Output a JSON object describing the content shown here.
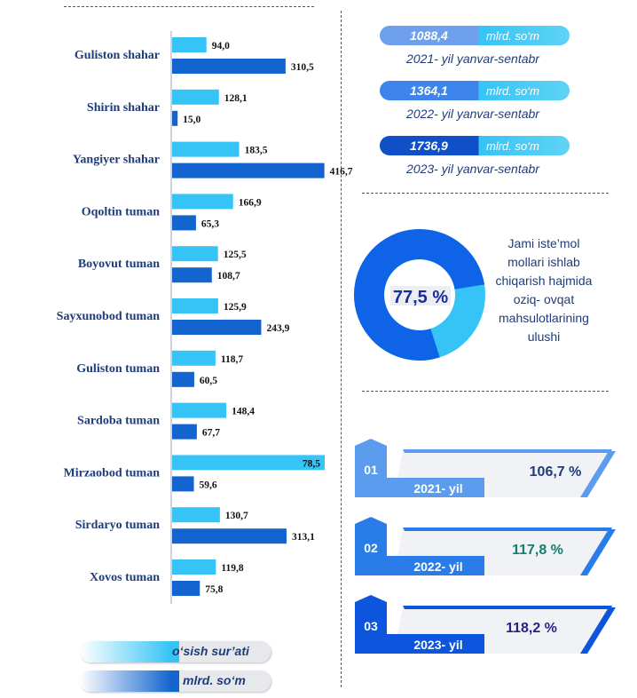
{
  "chart_data": {
    "type": "bar",
    "orientation": "horizontal",
    "categories": [
      "Guliston shahar",
      "Shirin shahar",
      "Yangiyer shahar",
      "Oqoltin tuman",
      "Boyovut tuman",
      "Sayxunobod tuman",
      "Guliston tuman",
      "Sardoba tuman",
      "Mirzaobod tuman",
      "Sirdaryo tuman",
      "Xovos tuman"
    ],
    "series": [
      {
        "name": "o‘sish sur’ati",
        "color": "#35c4f5",
        "values": [
          94.0,
          128.1,
          183.5,
          166.9,
          125.5,
          125.9,
          118.7,
          148.4,
          78.5,
          130.7,
          119.8
        ]
      },
      {
        "name": "mlrd. so‘m",
        "color": "#1464cf",
        "values": [
          310.5,
          15.0,
          416.7,
          65.3,
          108.7,
          243.9,
          60.5,
          67.7,
          59.6,
          313.1,
          75.8
        ]
      }
    ],
    "value_labels": [
      [
        "94,0",
        "128,1",
        "183,5",
        "166,9",
        "125,5",
        "125,9",
        "118,7",
        "148,4",
        "78,5",
        "130,7",
        "119,8"
      ],
      [
        "310,5",
        "15,0",
        "416,7",
        "65,3",
        "108,7",
        "243,9",
        "60,5",
        "67,7",
        "59,6",
        "313,1",
        "75,8"
      ]
    ],
    "xlim": [
      0,
      420
    ],
    "grid": false
  },
  "summary": [
    {
      "value": "1088,4",
      "unit": "mlrd. so‘m",
      "caption": "2021- yil yanvar-sentabr",
      "color": "#6fa0ee"
    },
    {
      "value": "1364,1",
      "unit": "mlrd. so‘m",
      "caption": "2022- yil yanvar-sentabr",
      "color": "#3d84ec"
    },
    {
      "value": "1736,9",
      "unit": "mlrd. so‘m",
      "caption": "2023- yil yanvar-sentabr",
      "color": "#0f4fc8"
    }
  ],
  "donut": {
    "percent": 77.5,
    "label": "77,5 %",
    "main_color": "#0e63e6",
    "rest_color": "#35c4f5",
    "text_lines": [
      "Jami iste’mol",
      "mollari ishlab",
      "chiqarish hajmida",
      "oziq- ovqat",
      "mahsulotlarining",
      "ulushi"
    ]
  },
  "growth": [
    {
      "num": "01",
      "year": "2021- yil",
      "value": "106,7 %",
      "color": "#5c9cee",
      "value_color": "#1f3c7a"
    },
    {
      "num": "02",
      "year": "2022- yil",
      "value": "117,8 %",
      "color": "#2a7de9",
      "value_color": "#127f6f"
    },
    {
      "num": "03",
      "year": "2023- yil",
      "value": "118,2 %",
      "color": "#0c55dc",
      "value_color": "#2a1f8a"
    }
  ],
  "legend": [
    {
      "label": "o‘sish sur’ati",
      "color": "#35c4f5"
    },
    {
      "label": "mlrd. so‘m",
      "color": "#1464cf"
    }
  ]
}
